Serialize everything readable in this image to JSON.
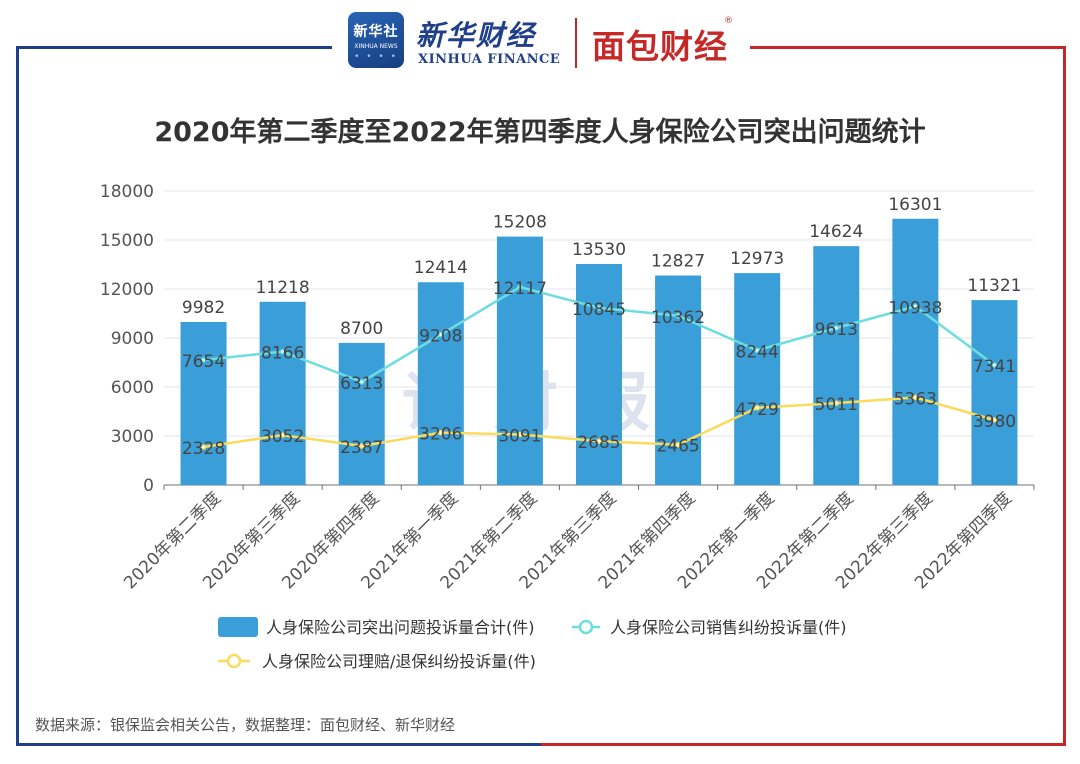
{
  "header": {
    "badge_cn": "新华社",
    "badge_en": "XINHUA NEWS",
    "xinhua_finance_cn": "新华财经",
    "xinhua_finance_en": "XINHUA FINANCE",
    "mianbao_logo": "面包财经",
    "registered_mark": "®"
  },
  "watermark": "读财报",
  "footer": {
    "source_note": "数据来源：银保监会相关公告，数据整理：面包财经、新华财经"
  },
  "chart_data": {
    "type": "bar",
    "title": "2020年第二季度至2022年第四季度人身保险公司突出问题统计",
    "categories": [
      "2020年第二季度",
      "2020年第三季度",
      "2020年第四季度",
      "2021年第一季度",
      "2021年第二季度",
      "2021年第三季度",
      "2021年第四季度",
      "2022年第一季度",
      "2022年第二季度",
      "2022年第三季度",
      "2022年第四季度"
    ],
    "ylim": [
      0,
      18000
    ],
    "yticks": [
      0,
      3000,
      6000,
      9000,
      12000,
      15000,
      18000
    ],
    "grid": true,
    "legend_position": "bottom",
    "series": [
      {
        "name": "人身保险公司突出问题投诉量合计(件)",
        "type": "bar",
        "color": "#3a9fd8",
        "values": [
          9982,
          11218,
          8700,
          12414,
          15208,
          13530,
          12827,
          12973,
          14624,
          16301,
          11321
        ]
      },
      {
        "name": "人身保险公司销售纠纷投诉量(件)",
        "type": "line",
        "color": "#6ddde0",
        "values": [
          7654,
          8166,
          6313,
          9208,
          12117,
          10845,
          10362,
          8244,
          9613,
          10938,
          7341
        ]
      },
      {
        "name": "人身保险公司理赔/退保纠纷投诉量(件)",
        "type": "line",
        "color": "#f9dc5c",
        "values": [
          2328,
          3052,
          2387,
          3206,
          3091,
          2685,
          2465,
          4729,
          5011,
          5363,
          3980
        ]
      }
    ]
  }
}
